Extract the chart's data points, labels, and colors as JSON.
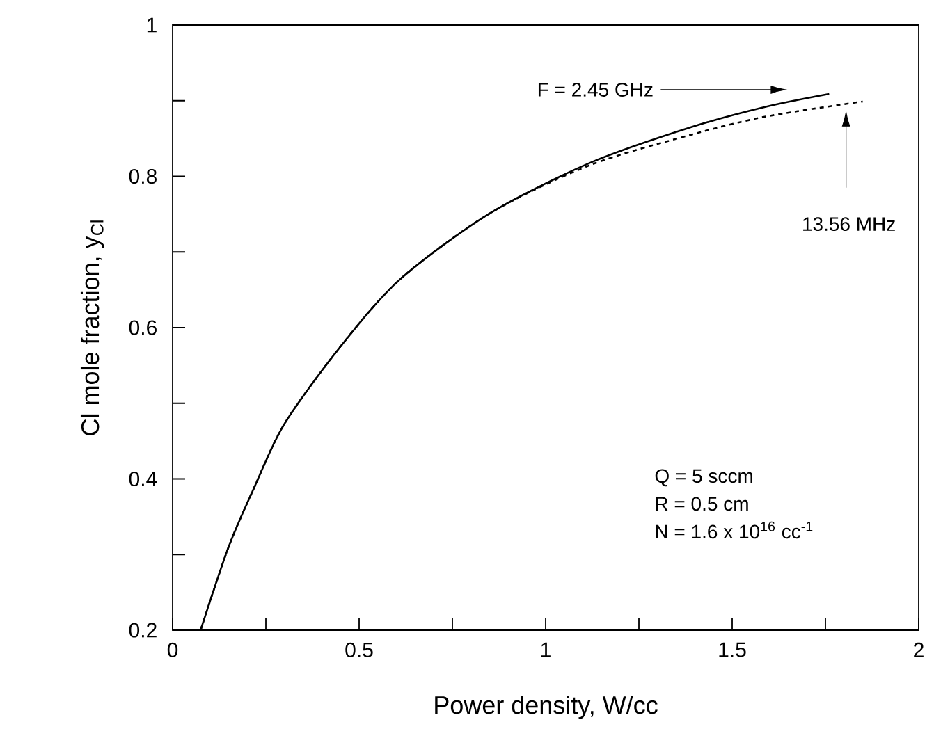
{
  "chart_data": {
    "type": "line",
    "xlabel": "Power density, W/cc",
    "ylabel": "Cl mole fraction, y$_{Cl}$",
    "xlim": [
      0,
      2
    ],
    "ylim": [
      0.2,
      1
    ],
    "xticks": [
      0,
      {
        "value": 0.25,
        "label": null
      },
      0.5,
      {
        "value": 0.75,
        "label": null
      },
      1,
      {
        "value": 1.25,
        "label": null
      },
      1.5,
      {
        "value": 1.75,
        "label": null
      },
      2
    ],
    "yticks": [
      0.2,
      {
        "value": 0.3,
        "label": null
      },
      0.4,
      {
        "value": 0.5,
        "label": null
      },
      0.6,
      {
        "value": 0.7,
        "label": null
      },
      0.8,
      {
        "value": 0.9,
        "label": null
      },
      1
    ],
    "grid": false,
    "marker": "none",
    "series": [
      {
        "color": "#000000",
        "line_style": "solid",
        "x": [
          0.075,
          0.15,
          0.22,
          0.3,
          0.45,
          0.61,
          0.85,
          1.12,
          1.39,
          1.59,
          1.76
        ],
        "values": [
          0.2,
          0.31,
          0.39,
          0.473,
          0.575,
          0.664,
          0.751,
          0.818,
          0.865,
          0.892,
          0.909
        ]
      },
      {
        "color": "#000000",
        "line_style": "dashed",
        "x": [
          0.075,
          0.15,
          0.22,
          0.3,
          0.45,
          0.61,
          0.85,
          1.12,
          1.39,
          1.59,
          1.85
        ],
        "values": [
          0.2,
          0.31,
          0.39,
          0.473,
          0.575,
          0.664,
          0.751,
          0.815,
          0.855,
          0.879,
          0.899
        ]
      }
    ],
    "annotations": [
      "F = 2.45 GHz",
      "13.56 MHz",
      "Q = 5 sccm",
      "R = 0.5 cm",
      "N = 1.6 x 10$^{16}$ cc$^{-1}$"
    ]
  }
}
